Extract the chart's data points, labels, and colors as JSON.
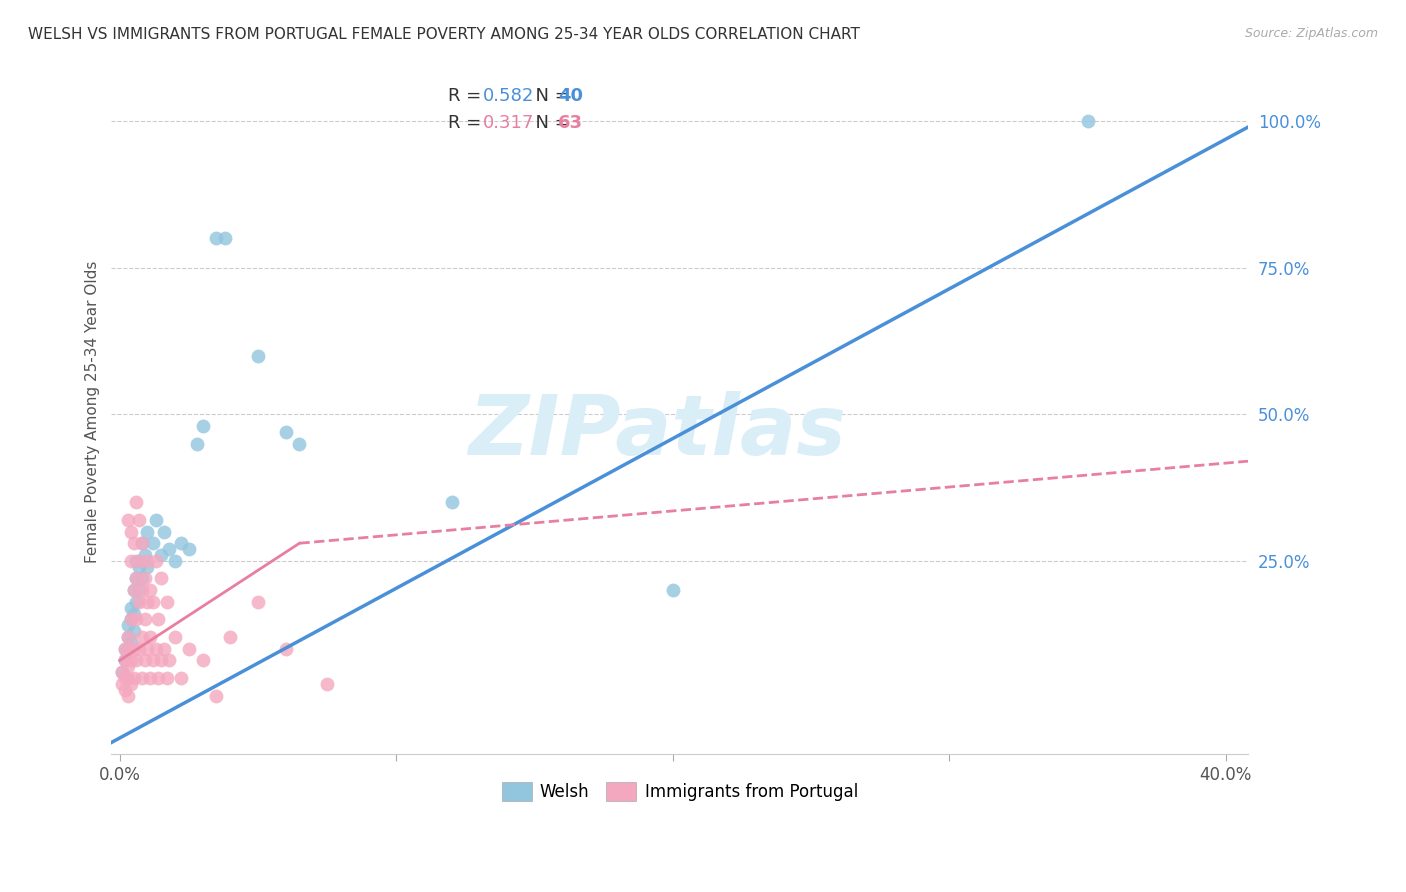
{
  "title": "WELSH VS IMMIGRANTS FROM PORTUGAL FEMALE POVERTY AMONG 25-34 YEAR OLDS CORRELATION CHART",
  "source": "Source: ZipAtlas.com",
  "ylabel": "Female Poverty Among 25-34 Year Olds",
  "xlim": [
    -0.003,
    0.408
  ],
  "ylim": [
    -0.08,
    1.09
  ],
  "xticks": [
    0.0,
    0.1,
    0.2,
    0.3,
    0.4
  ],
  "xtick_labels": [
    "0.0%",
    "",
    "",
    "",
    "40.0%"
  ],
  "yticks": [
    0.25,
    0.5,
    0.75,
    1.0
  ],
  "ytick_labels": [
    "25.0%",
    "50.0%",
    "75.0%",
    "100.0%"
  ],
  "welsh_R": "0.582",
  "welsh_N": "40",
  "portugal_R": "0.317",
  "portugal_N": "63",
  "welsh_color": "#92c5de",
  "portugal_color": "#f4a8bf",
  "welsh_line_color": "#4a90d9",
  "portugal_line_color": "#e87fa0",
  "right_axis_color": "#4a90d9",
  "background_color": "#ffffff",
  "watermark_text": "ZIPatlas",
  "watermark_color": "#daeef8",
  "grid_color": "#cccccc",
  "welsh_scatter": [
    [
      0.001,
      0.06
    ],
    [
      0.002,
      0.08
    ],
    [
      0.002,
      0.1
    ],
    [
      0.003,
      0.09
    ],
    [
      0.003,
      0.12
    ],
    [
      0.003,
      0.14
    ],
    [
      0.004,
      0.11
    ],
    [
      0.004,
      0.15
    ],
    [
      0.004,
      0.17
    ],
    [
      0.005,
      0.13
    ],
    [
      0.005,
      0.16
    ],
    [
      0.005,
      0.2
    ],
    [
      0.006,
      0.18
    ],
    [
      0.006,
      0.22
    ],
    [
      0.006,
      0.25
    ],
    [
      0.007,
      0.2
    ],
    [
      0.007,
      0.24
    ],
    [
      0.008,
      0.22
    ],
    [
      0.008,
      0.28
    ],
    [
      0.009,
      0.26
    ],
    [
      0.01,
      0.24
    ],
    [
      0.01,
      0.3
    ],
    [
      0.012,
      0.28
    ],
    [
      0.013,
      0.32
    ],
    [
      0.015,
      0.26
    ],
    [
      0.016,
      0.3
    ],
    [
      0.018,
      0.27
    ],
    [
      0.02,
      0.25
    ],
    [
      0.022,
      0.28
    ],
    [
      0.025,
      0.27
    ],
    [
      0.028,
      0.45
    ],
    [
      0.03,
      0.48
    ],
    [
      0.035,
      0.8
    ],
    [
      0.038,
      0.8
    ],
    [
      0.05,
      0.6
    ],
    [
      0.06,
      0.47
    ],
    [
      0.065,
      0.45
    ],
    [
      0.12,
      0.35
    ],
    [
      0.2,
      0.2
    ],
    [
      0.35,
      1.0
    ]
  ],
  "portugal_scatter": [
    [
      0.001,
      0.04
    ],
    [
      0.001,
      0.06
    ],
    [
      0.002,
      0.03
    ],
    [
      0.002,
      0.05
    ],
    [
      0.002,
      0.08
    ],
    [
      0.002,
      0.1
    ],
    [
      0.003,
      0.02
    ],
    [
      0.003,
      0.05
    ],
    [
      0.003,
      0.07
    ],
    [
      0.003,
      0.1
    ],
    [
      0.003,
      0.12
    ],
    [
      0.003,
      0.32
    ],
    [
      0.004,
      0.04
    ],
    [
      0.004,
      0.08
    ],
    [
      0.004,
      0.15
    ],
    [
      0.004,
      0.25
    ],
    [
      0.004,
      0.3
    ],
    [
      0.005,
      0.05
    ],
    [
      0.005,
      0.1
    ],
    [
      0.005,
      0.2
    ],
    [
      0.005,
      0.28
    ],
    [
      0.006,
      0.08
    ],
    [
      0.006,
      0.15
    ],
    [
      0.006,
      0.22
    ],
    [
      0.006,
      0.35
    ],
    [
      0.007,
      0.1
    ],
    [
      0.007,
      0.18
    ],
    [
      0.007,
      0.25
    ],
    [
      0.007,
      0.32
    ],
    [
      0.008,
      0.05
    ],
    [
      0.008,
      0.12
    ],
    [
      0.008,
      0.2
    ],
    [
      0.008,
      0.28
    ],
    [
      0.009,
      0.08
    ],
    [
      0.009,
      0.15
    ],
    [
      0.009,
      0.22
    ],
    [
      0.01,
      0.1
    ],
    [
      0.01,
      0.18
    ],
    [
      0.01,
      0.25
    ],
    [
      0.011,
      0.05
    ],
    [
      0.011,
      0.12
    ],
    [
      0.011,
      0.2
    ],
    [
      0.012,
      0.08
    ],
    [
      0.012,
      0.18
    ],
    [
      0.013,
      0.1
    ],
    [
      0.013,
      0.25
    ],
    [
      0.014,
      0.05
    ],
    [
      0.014,
      0.15
    ],
    [
      0.015,
      0.08
    ],
    [
      0.015,
      0.22
    ],
    [
      0.016,
      0.1
    ],
    [
      0.017,
      0.05
    ],
    [
      0.017,
      0.18
    ],
    [
      0.018,
      0.08
    ],
    [
      0.02,
      0.12
    ],
    [
      0.022,
      0.05
    ],
    [
      0.025,
      0.1
    ],
    [
      0.03,
      0.08
    ],
    [
      0.035,
      0.02
    ],
    [
      0.04,
      0.12
    ],
    [
      0.05,
      0.18
    ],
    [
      0.06,
      0.1
    ],
    [
      0.075,
      0.04
    ]
  ],
  "welsh_line": {
    "x0": -0.003,
    "x1": 0.408,
    "y0": -0.06,
    "y1": 0.99
  },
  "portugal_line_solid": {
    "x0": 0.0,
    "x1": 0.065,
    "y0": 0.08,
    "y1": 0.28
  },
  "portugal_line_dashed": {
    "x0": 0.065,
    "x1": 0.408,
    "y0": 0.28,
    "y1": 0.42
  }
}
